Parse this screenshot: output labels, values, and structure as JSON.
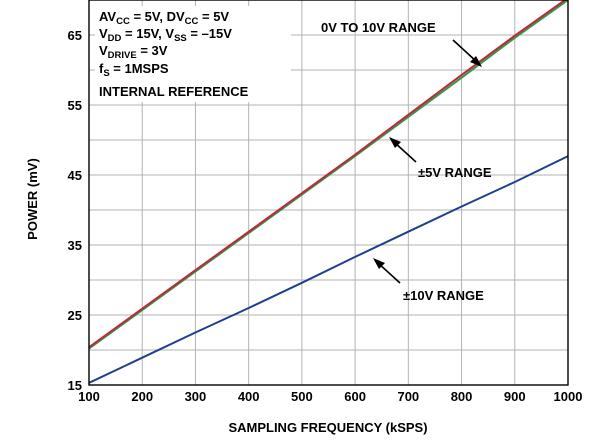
{
  "chart_data": {
    "type": "line",
    "title": "",
    "xlabel": "SAMPLING FREQUENCY (kSPS)",
    "ylabel": "POWER (mV)",
    "xlim": [
      100,
      1000
    ],
    "ylim": [
      15,
      70
    ],
    "x_ticks": [
      100,
      200,
      300,
      400,
      500,
      600,
      700,
      800,
      900,
      1000
    ],
    "y_ticks": [
      15,
      25,
      35,
      45,
      55,
      65
    ],
    "grid": true,
    "x": [
      100,
      200,
      300,
      400,
      500,
      600,
      700,
      800,
      900,
      1000
    ],
    "series": [
      {
        "name": "0V TO 10V RANGE",
        "color": "#c0273a",
        "values": [
          20.4,
          25.9,
          31.4,
          36.9,
          42.4,
          47.9,
          53.6,
          59.3,
          64.9,
          70.3
        ]
      },
      {
        "name": "±5V RANGE",
        "color": "#2e9a4a",
        "values": [
          20.2,
          25.7,
          31.2,
          36.7,
          42.2,
          47.7,
          53.3,
          58.9,
          64.6,
          70.0
        ]
      },
      {
        "name": "±10V RANGE",
        "color": "#1f3f8f",
        "values": [
          15.3,
          18.9,
          22.5,
          26.0,
          29.6,
          33.3,
          36.9,
          40.5,
          44.0,
          47.7
        ]
      }
    ],
    "conditions": [
      "AV_CC = 5V, DV_CC = 5V",
      "V_DD = 15V, V_SS = –15V",
      "V_DRIVE = 3V",
      "f_S = 1MSPS",
      "INTERNAL REFERENCE"
    ],
    "annotations": {
      "range_0_10": "0V TO 10V RANGE",
      "range_pm5": "±5V RANGE",
      "range_pm10": "±10V RANGE"
    }
  },
  "conditions_parts": {
    "av_pre": "AV",
    "av_sub": "CC",
    "av_mid": " = 5V, DV",
    "dv_sub": "CC",
    "av_post": " = 5V",
    "vdd_pre": "V",
    "vdd_sub": "DD",
    "vdd_mid": " = 15V, V",
    "vss_sub": "SS",
    "vss_post": " = –15V",
    "vdrive_pre": "V",
    "vdrive_sub": "DRIVE",
    "vdrive_post": " = 3V",
    "fs_pre": "f",
    "fs_sub": "S",
    "fs_post": " = 1MSPS",
    "ref": "INTERNAL REFERENCE"
  }
}
